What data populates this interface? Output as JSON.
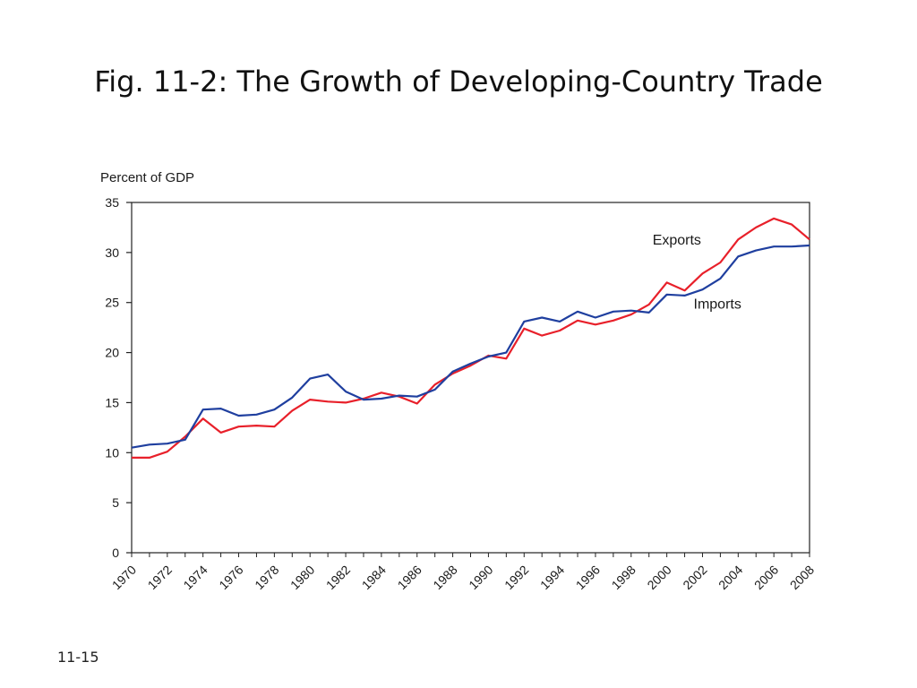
{
  "slide": {
    "title": "Fig. 11-2: The Growth of Developing-Country Trade",
    "number": "11-15"
  },
  "chart_data": {
    "type": "line",
    "title": "Fig. 11-2: The Growth of Developing-Country Trade",
    "ylabel": "Percent of GDP",
    "xlabel": "",
    "ylim": [
      0,
      35
    ],
    "yticks": [
      0,
      5,
      10,
      15,
      20,
      25,
      30,
      35
    ],
    "x": [
      1970,
      1971,
      1972,
      1973,
      1974,
      1975,
      1976,
      1977,
      1978,
      1979,
      1980,
      1981,
      1982,
      1983,
      1984,
      1985,
      1986,
      1987,
      1988,
      1989,
      1990,
      1991,
      1992,
      1993,
      1994,
      1995,
      1996,
      1997,
      1998,
      1999,
      2000,
      2001,
      2002,
      2003,
      2004,
      2005,
      2006,
      2007,
      2008
    ],
    "xtick_labels": [
      "1970",
      "1972",
      "1974",
      "1976",
      "1978",
      "1980",
      "1982",
      "1984",
      "1986",
      "1988",
      "1990",
      "1992",
      "1994",
      "1996",
      "1998",
      "2000",
      "2002",
      "2004",
      "2006",
      "2008"
    ],
    "grid": false,
    "legend": "inline labels",
    "series": [
      {
        "name": "Exports",
        "color": "#e8202a",
        "values": [
          9.5,
          9.5,
          10.1,
          11.6,
          13.4,
          12.0,
          12.6,
          12.7,
          12.6,
          14.2,
          15.3,
          15.1,
          15.0,
          15.4,
          16.0,
          15.6,
          14.9,
          16.8,
          17.9,
          18.7,
          19.7,
          19.4,
          22.4,
          21.7,
          22.2,
          23.2,
          22.8,
          23.2,
          23.8,
          24.8,
          27.0,
          26.2,
          27.9,
          29.0,
          31.3,
          32.5,
          33.4,
          32.8,
          31.3
        ],
        "label_pos": [
          1999.2,
          30.8
        ]
      },
      {
        "name": "Imports",
        "color": "#1f3f9f",
        "values": [
          10.5,
          10.8,
          10.9,
          11.3,
          14.3,
          14.4,
          13.7,
          13.8,
          14.3,
          15.5,
          17.4,
          17.8,
          16.1,
          15.3,
          15.4,
          15.7,
          15.6,
          16.3,
          18.1,
          18.9,
          19.6,
          20.0,
          23.1,
          23.5,
          23.1,
          24.1,
          23.5,
          24.1,
          24.2,
          24.0,
          25.8,
          25.7,
          26.3,
          27.4,
          29.6,
          30.2,
          30.6,
          30.6,
          30.7
        ],
        "label_pos": [
          2001.5,
          24.4
        ]
      }
    ]
  }
}
